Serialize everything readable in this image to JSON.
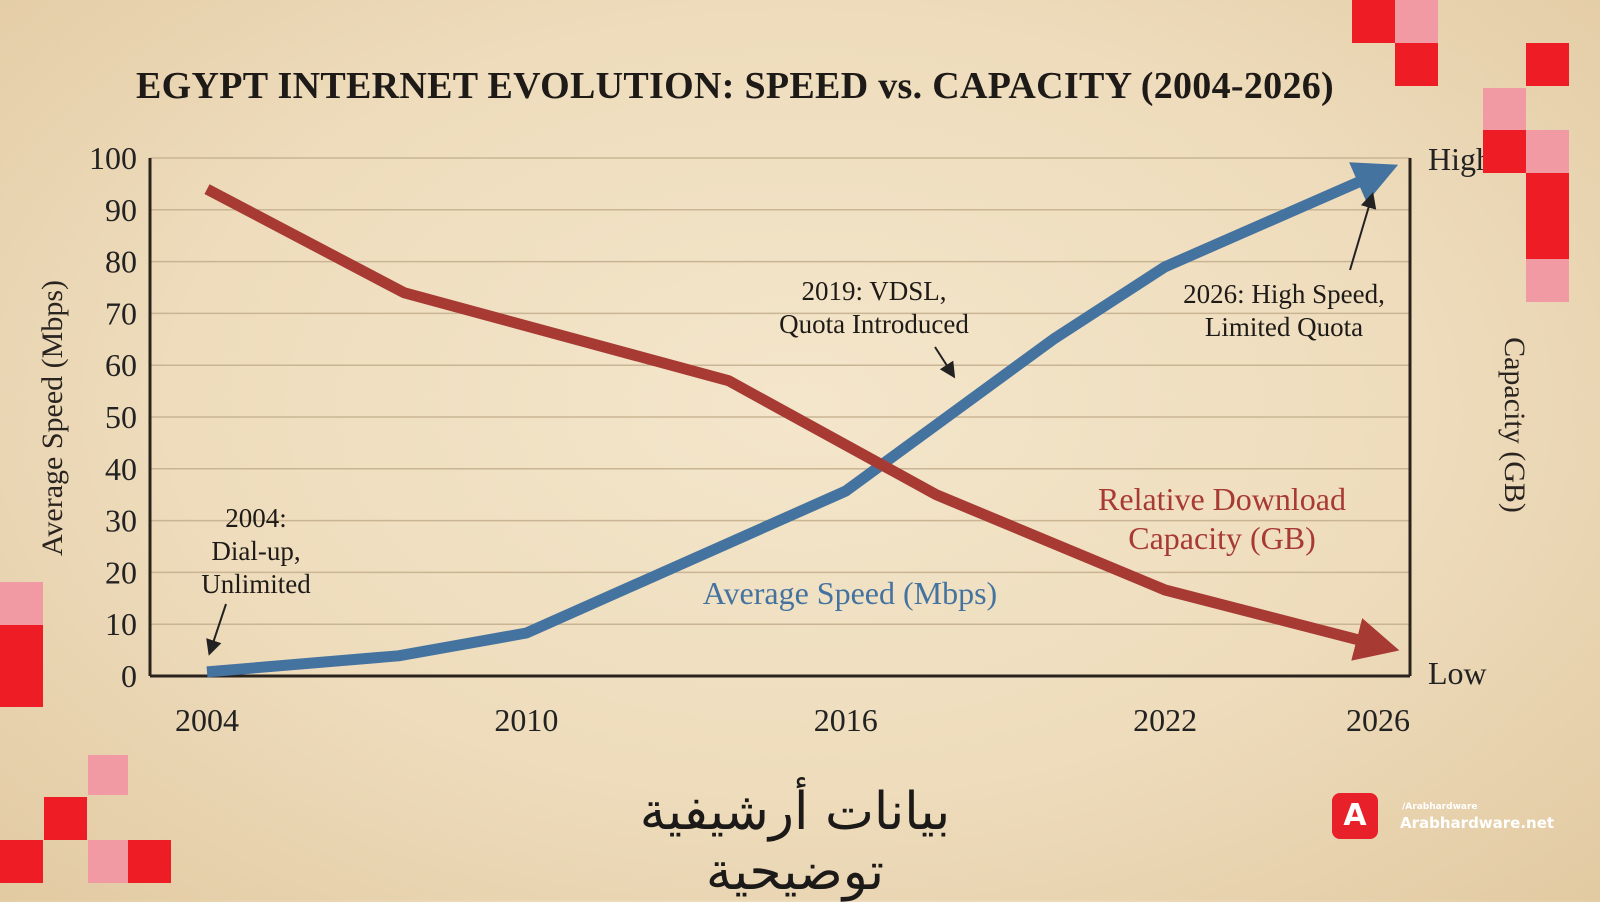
{
  "chart_data": {
    "type": "line",
    "title": "EGYPT INTERNET EVOLUTION: SPEED vs. CAPACITY (2004-2026)",
    "xlabel": "",
    "ylabel": "Average Speed (Mbps)",
    "y2label": "Capacity (GB)",
    "y2_ticks": [
      "High",
      "Low"
    ],
    "xlim": [
      2004,
      2026
    ],
    "ylim": [
      0,
      100
    ],
    "x_ticks": [
      2004,
      2010,
      2016,
      2022,
      2026
    ],
    "y_ticks": [
      0,
      10,
      20,
      30,
      40,
      50,
      60,
      70,
      80,
      90,
      100
    ],
    "grid": true,
    "series": [
      {
        "name": "Average Speed (Mbps)",
        "color": "#44739f",
        "x": [
          2004,
          2007.6,
          2010,
          2016,
          2019.9,
          2022,
          2026
        ],
        "values": [
          0.8,
          3.9,
          8.3,
          35.7,
          65,
          79,
          97
        ]
      },
      {
        "name": "Relative Download Capacity (GB)",
        "color": "#a83a34",
        "x": [
          2004,
          2007.7,
          2013.8,
          2017.7,
          2022,
          2026
        ],
        "values": [
          94,
          74,
          57,
          35,
          16.6,
          6
        ]
      }
    ],
    "series_labels": [
      "Average Speed (Mbps)",
      "Relative Download",
      "Capacity (GB)"
    ],
    "annotations": [
      {
        "lines": [
          "2004:",
          "Dial-up,",
          "Unlimited"
        ],
        "x": 2004,
        "y": 1
      },
      {
        "lines": [
          "2019: VDSL,",
          "Quota Introduced"
        ],
        "x": 2019,
        "y": 60
      },
      {
        "lines": [
          "2026: High Speed,",
          "Limited Quota"
        ],
        "x": 2026,
        "y": 94
      }
    ]
  },
  "caption": "بيانات أرشيفية توضيحية",
  "watermark": {
    "social": "/Arabhardware",
    "site": "Arabhardware.net"
  }
}
